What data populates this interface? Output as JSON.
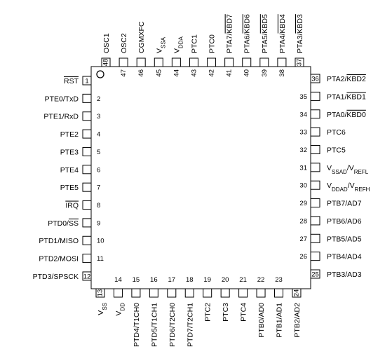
{
  "pins": {
    "left": [
      {
        "number": 1,
        "label": [
          {
            "t": "RST",
            "overline": true
          }
        ]
      },
      {
        "number": 2,
        "label": [
          {
            "t": "PTE0/TxD"
          }
        ]
      },
      {
        "number": 3,
        "label": [
          {
            "t": "PTE1/RxD"
          }
        ]
      },
      {
        "number": 4,
        "label": [
          {
            "t": "PTE2"
          }
        ]
      },
      {
        "number": 5,
        "label": [
          {
            "t": "PTE3"
          }
        ]
      },
      {
        "number": 6,
        "label": [
          {
            "t": "PTE4"
          }
        ]
      },
      {
        "number": 7,
        "label": [
          {
            "t": "PTE5"
          }
        ]
      },
      {
        "number": 8,
        "label": [
          {
            "t": "IRQ",
            "overline": true
          }
        ]
      },
      {
        "number": 9,
        "label": [
          {
            "t": "PTD0/"
          },
          {
            "t": "SS",
            "overline": true
          }
        ]
      },
      {
        "number": 10,
        "label": [
          {
            "t": "PTD1/MISO"
          }
        ]
      },
      {
        "number": 11,
        "label": [
          {
            "t": "PTD2/MOSI"
          }
        ]
      },
      {
        "number": 12,
        "label": [
          {
            "t": "PTD3/SPSCK"
          }
        ]
      }
    ],
    "bottom": [
      {
        "number": 13,
        "label": [
          {
            "t": "V"
          },
          {
            "t": "SS",
            "sub": true
          }
        ]
      },
      {
        "number": 14,
        "label": [
          {
            "t": "V"
          },
          {
            "t": "DD",
            "sub": true
          }
        ]
      },
      {
        "number": 15,
        "label": [
          {
            "t": "PTD4/T1CH0"
          }
        ]
      },
      {
        "number": 16,
        "label": [
          {
            "t": "PTD5/T1CH1"
          }
        ]
      },
      {
        "number": 17,
        "label": [
          {
            "t": "PTD6/T2CH0"
          }
        ]
      },
      {
        "number": 18,
        "label": [
          {
            "t": "PTD7/T2CH1"
          }
        ]
      },
      {
        "number": 19,
        "label": [
          {
            "t": "PTC2"
          }
        ]
      },
      {
        "number": 20,
        "label": [
          {
            "t": "PTC3"
          }
        ]
      },
      {
        "number": 21,
        "label": [
          {
            "t": "PTC4"
          }
        ]
      },
      {
        "number": 22,
        "label": [
          {
            "t": "PTB0/AD0"
          }
        ]
      },
      {
        "number": 23,
        "label": [
          {
            "t": "PTB1/AD1"
          }
        ]
      },
      {
        "number": 24,
        "label": [
          {
            "t": "PTB2/AD2"
          }
        ]
      }
    ],
    "right": [
      {
        "number": 25,
        "label": [
          {
            "t": "PTB3/AD3"
          }
        ]
      },
      {
        "number": 26,
        "label": [
          {
            "t": "PTB4/AD4"
          }
        ]
      },
      {
        "number": 27,
        "label": [
          {
            "t": "PTB5/AD5"
          }
        ]
      },
      {
        "number": 28,
        "label": [
          {
            "t": "PTB6/AD6"
          }
        ]
      },
      {
        "number": 29,
        "label": [
          {
            "t": "PTB7/AD7"
          }
        ]
      },
      {
        "number": 30,
        "label": [
          {
            "t": "V"
          },
          {
            "t": "DDAD",
            "sub": true
          },
          {
            "t": "/V"
          },
          {
            "t": "REFH",
            "sub": true
          }
        ]
      },
      {
        "number": 31,
        "label": [
          {
            "t": "V"
          },
          {
            "t": "SSAD",
            "sub": true
          },
          {
            "t": "/V"
          },
          {
            "t": "REFL",
            "sub": true
          }
        ]
      },
      {
        "number": 32,
        "label": [
          {
            "t": "PTC5"
          }
        ]
      },
      {
        "number": 33,
        "label": [
          {
            "t": "PTC6"
          }
        ]
      },
      {
        "number": 34,
        "label": [
          {
            "t": "PTA0/"
          },
          {
            "t": "KBD0",
            "overline": true
          }
        ]
      },
      {
        "number": 35,
        "label": [
          {
            "t": "PTA1/"
          },
          {
            "t": "KBD1",
            "overline": true
          }
        ]
      },
      {
        "number": 36,
        "label": [
          {
            "t": "PTA2/"
          },
          {
            "t": "KBD2",
            "overline": true
          }
        ]
      }
    ],
    "top": [
      {
        "number": 37,
        "label": [
          {
            "t": "PTA3/"
          },
          {
            "t": "KBD3",
            "overline": true
          }
        ]
      },
      {
        "number": 38,
        "label": [
          {
            "t": "PTA4/"
          },
          {
            "t": "KBD4",
            "overline": true
          }
        ]
      },
      {
        "number": 39,
        "label": [
          {
            "t": "PTA5/"
          },
          {
            "t": "KBD5",
            "overline": true
          }
        ]
      },
      {
        "number": 40,
        "label": [
          {
            "t": "PTA6/"
          },
          {
            "t": "KBD6",
            "overline": true
          }
        ]
      },
      {
        "number": 41,
        "label": [
          {
            "t": "PTA7/"
          },
          {
            "t": "KBD7",
            "overline": true
          }
        ]
      },
      {
        "number": 42,
        "label": [
          {
            "t": "PTC0"
          }
        ]
      },
      {
        "number": 43,
        "label": [
          {
            "t": "PTC1"
          }
        ]
      },
      {
        "number": 44,
        "label": [
          {
            "t": "V"
          },
          {
            "t": "DDA",
            "sub": true
          }
        ]
      },
      {
        "number": 45,
        "label": [
          {
            "t": "V"
          },
          {
            "t": "SSA",
            "sub": true
          }
        ]
      },
      {
        "number": 46,
        "label": [
          {
            "t": "CGMXFC"
          }
        ]
      },
      {
        "number": 47,
        "label": [
          {
            "t": "OSC2"
          }
        ]
      },
      {
        "number": 48,
        "label": [
          {
            "t": "OSC1"
          }
        ]
      }
    ]
  }
}
